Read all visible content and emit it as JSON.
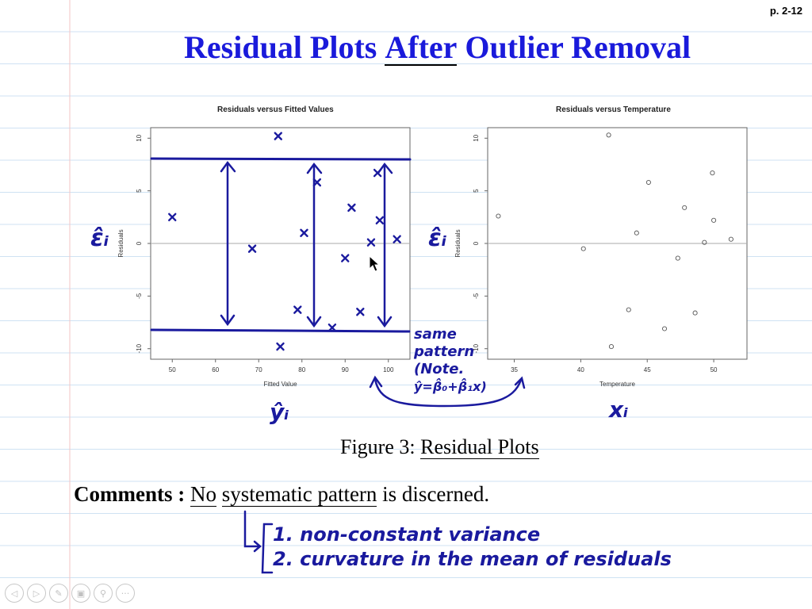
{
  "page": {
    "number": "p. 2-12"
  },
  "title": {
    "part1": "Residual Plots ",
    "emphasis": "After",
    "part2": " Outlier Removal"
  },
  "chart_data": [
    {
      "type": "scatter",
      "title": "Residuals versus Fitted Values",
      "xlabel": "Fitted Value",
      "ylabel": "Residuals",
      "xlim": [
        45,
        105
      ],
      "ylim": [
        -11,
        11
      ],
      "xticks": [
        50,
        60,
        70,
        80,
        90,
        100
      ],
      "yticks": [
        -10,
        -5,
        0,
        5,
        10
      ],
      "marker": "x",
      "hline": 0,
      "points": [
        {
          "x": 50,
          "y": 2.5
        },
        {
          "x": 68.5,
          "y": -0.5
        },
        {
          "x": 74.5,
          "y": 10.2
        },
        {
          "x": 75,
          "y": -9.8
        },
        {
          "x": 79,
          "y": -6.3
        },
        {
          "x": 80.5,
          "y": 1.0
        },
        {
          "x": 83.5,
          "y": 5.8
        },
        {
          "x": 87,
          "y": -8.0
        },
        {
          "x": 90,
          "y": -1.4
        },
        {
          "x": 91.5,
          "y": 3.4
        },
        {
          "x": 93.5,
          "y": -6.5
        },
        {
          "x": 96,
          "y": 0.1
        },
        {
          "x": 97.5,
          "y": 6.7
        },
        {
          "x": 98,
          "y": 2.2
        },
        {
          "x": 102,
          "y": 0.4
        }
      ]
    },
    {
      "type": "scatter",
      "title": "Residuals versus Temperature",
      "xlabel": "Temperature",
      "ylabel": "Residuals",
      "xlim": [
        33,
        52.5
      ],
      "ylim": [
        -11,
        11
      ],
      "xticks": [
        35,
        40,
        45,
        50
      ],
      "yticks": [
        -10,
        -5,
        0,
        5,
        10
      ],
      "marker": "o",
      "hline": 0,
      "points": [
        {
          "x": 33.8,
          "y": 2.6
        },
        {
          "x": 40.2,
          "y": -0.5
        },
        {
          "x": 42.1,
          "y": 10.3
        },
        {
          "x": 42.3,
          "y": -9.8
        },
        {
          "x": 43.6,
          "y": -6.3
        },
        {
          "x": 44.2,
          "y": 1.0
        },
        {
          "x": 45.1,
          "y": 5.8
        },
        {
          "x": 46.3,
          "y": -8.1
        },
        {
          "x": 47.3,
          "y": -1.4
        },
        {
          "x": 47.8,
          "y": 3.4
        },
        {
          "x": 48.6,
          "y": -6.6
        },
        {
          "x": 49.3,
          "y": 0.1
        },
        {
          "x": 49.9,
          "y": 6.7
        },
        {
          "x": 50.0,
          "y": 2.2
        },
        {
          "x": 51.3,
          "y": 0.4
        }
      ]
    }
  ],
  "figure": {
    "label": "Figure 3: ",
    "name": "Residual Plots"
  },
  "comments": {
    "label": "Comments :",
    "no": "No",
    "phrase": "systematic pattern",
    "rest": " is discerned."
  },
  "annotations": {
    "eps_left": "ε̂ᵢ",
    "eps_right": "ε̂ᵢ",
    "yhat": "ŷᵢ",
    "xi": "xᵢ",
    "same": "same",
    "pattern": "pattern",
    "note": "(Note.",
    "formula": "ŷ=β̂₀+β̂₁x)",
    "item1": "1. non-constant variance",
    "item2": "2. curvature in the mean of residuals"
  },
  "toolbar": [
    {
      "name": "prev-icon",
      "glyph": "◁"
    },
    {
      "name": "next-icon",
      "glyph": "▷"
    },
    {
      "name": "pen-icon",
      "glyph": "✎"
    },
    {
      "name": "pages-icon",
      "glyph": "▣"
    },
    {
      "name": "zoom-icon",
      "glyph": "⚲"
    },
    {
      "name": "more-icon",
      "glyph": "···"
    }
  ],
  "colors": {
    "title": "#1a1adb",
    "ink": "#1a1a9e",
    "ruled_lines": "#cfe2f3",
    "margin_line": "#f3c6c6"
  }
}
